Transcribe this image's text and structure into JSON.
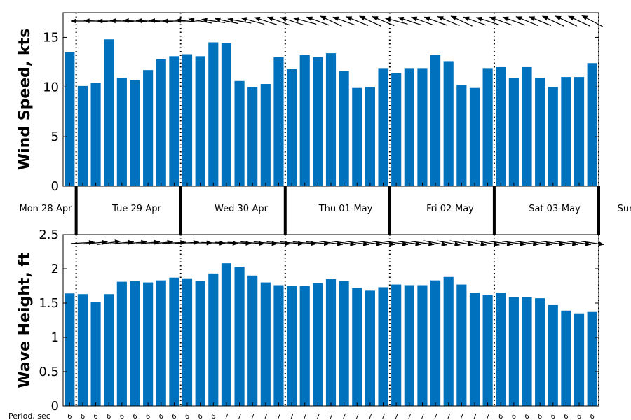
{
  "chart_data": [
    {
      "type": "bar",
      "ylabel": "Wind Speed, kts",
      "ylim": [
        0,
        17.5
      ],
      "yticks": [
        0,
        5,
        10,
        15
      ],
      "color": "#0072BD",
      "values": [
        13.5,
        10.1,
        10.4,
        14.8,
        10.9,
        10.7,
        11.7,
        12.8,
        13.1,
        13.3,
        13.1,
        14.5,
        14.4,
        10.6,
        10.0,
        10.3,
        13.0,
        11.8,
        13.2,
        13.0,
        13.4,
        11.6,
        9.9,
        10.0,
        11.9,
        11.4,
        11.9,
        11.9,
        13.2,
        12.6,
        10.2,
        9.9,
        11.9,
        12.0,
        10.9,
        12.0,
        10.9,
        10.0,
        11.0,
        11.0,
        12.4
      ],
      "direction_arrow_angles_deg": [
        183,
        180,
        182,
        180,
        182,
        183,
        183,
        183,
        180,
        185,
        190,
        188,
        192,
        190,
        195,
        198,
        200,
        198,
        195,
        200,
        205,
        200,
        202,
        205,
        203,
        195,
        198,
        200,
        200,
        203,
        205,
        200,
        198,
        200,
        200,
        202,
        202,
        205,
        205,
        205,
        208
      ]
    },
    {
      "type": "bar",
      "ylabel": "Wave Height, ft",
      "ylim": [
        0,
        2.5
      ],
      "yticks": [
        0,
        0.5,
        1,
        1.5,
        2,
        2.5
      ],
      "color": "#0072BD",
      "values": [
        1.64,
        1.63,
        1.51,
        1.63,
        1.81,
        1.82,
        1.8,
        1.83,
        1.87,
        1.86,
        1.82,
        1.93,
        2.08,
        2.03,
        1.9,
        1.8,
        1.76,
        1.75,
        1.75,
        1.79,
        1.85,
        1.82,
        1.72,
        1.68,
        1.73,
        1.77,
        1.76,
        1.76,
        1.83,
        1.88,
        1.77,
        1.65,
        1.62,
        1.65,
        1.59,
        1.59,
        1.57,
        1.47,
        1.39,
        1.35,
        1.37
      ],
      "direction_arrow_angles_deg": [
        0,
        -3,
        -5,
        -8,
        -5,
        -5,
        -5,
        -5,
        -3,
        -3,
        0,
        2,
        3,
        3,
        5,
        5,
        5,
        5,
        5,
        5,
        8,
        8,
        8,
        8,
        8,
        8,
        8,
        8,
        10,
        10,
        10,
        10,
        10,
        8,
        8,
        8,
        8,
        8,
        8,
        8,
        8
      ]
    }
  ],
  "days": [
    "Mon 28-Apr",
    "Tue 29-Apr",
    "Wed 30-Apr",
    "Thu 01-May",
    "Fri 02-May",
    "Sat 03-May",
    "Sun"
  ],
  "period_title": "Period, sec",
  "periods": [
    "6",
    "6",
    "6",
    "6",
    "6",
    "6",
    "6",
    "6",
    "6",
    "6",
    "6",
    "6",
    "7",
    "7",
    "7",
    "7",
    "7",
    "7",
    "7",
    "7",
    "7",
    "7",
    "7",
    "7",
    "7",
    "7",
    "7",
    "7",
    "7",
    "7",
    "7",
    "7",
    "7",
    "6",
    "6",
    "6",
    "6",
    "6",
    "6",
    "6",
    "6"
  ]
}
